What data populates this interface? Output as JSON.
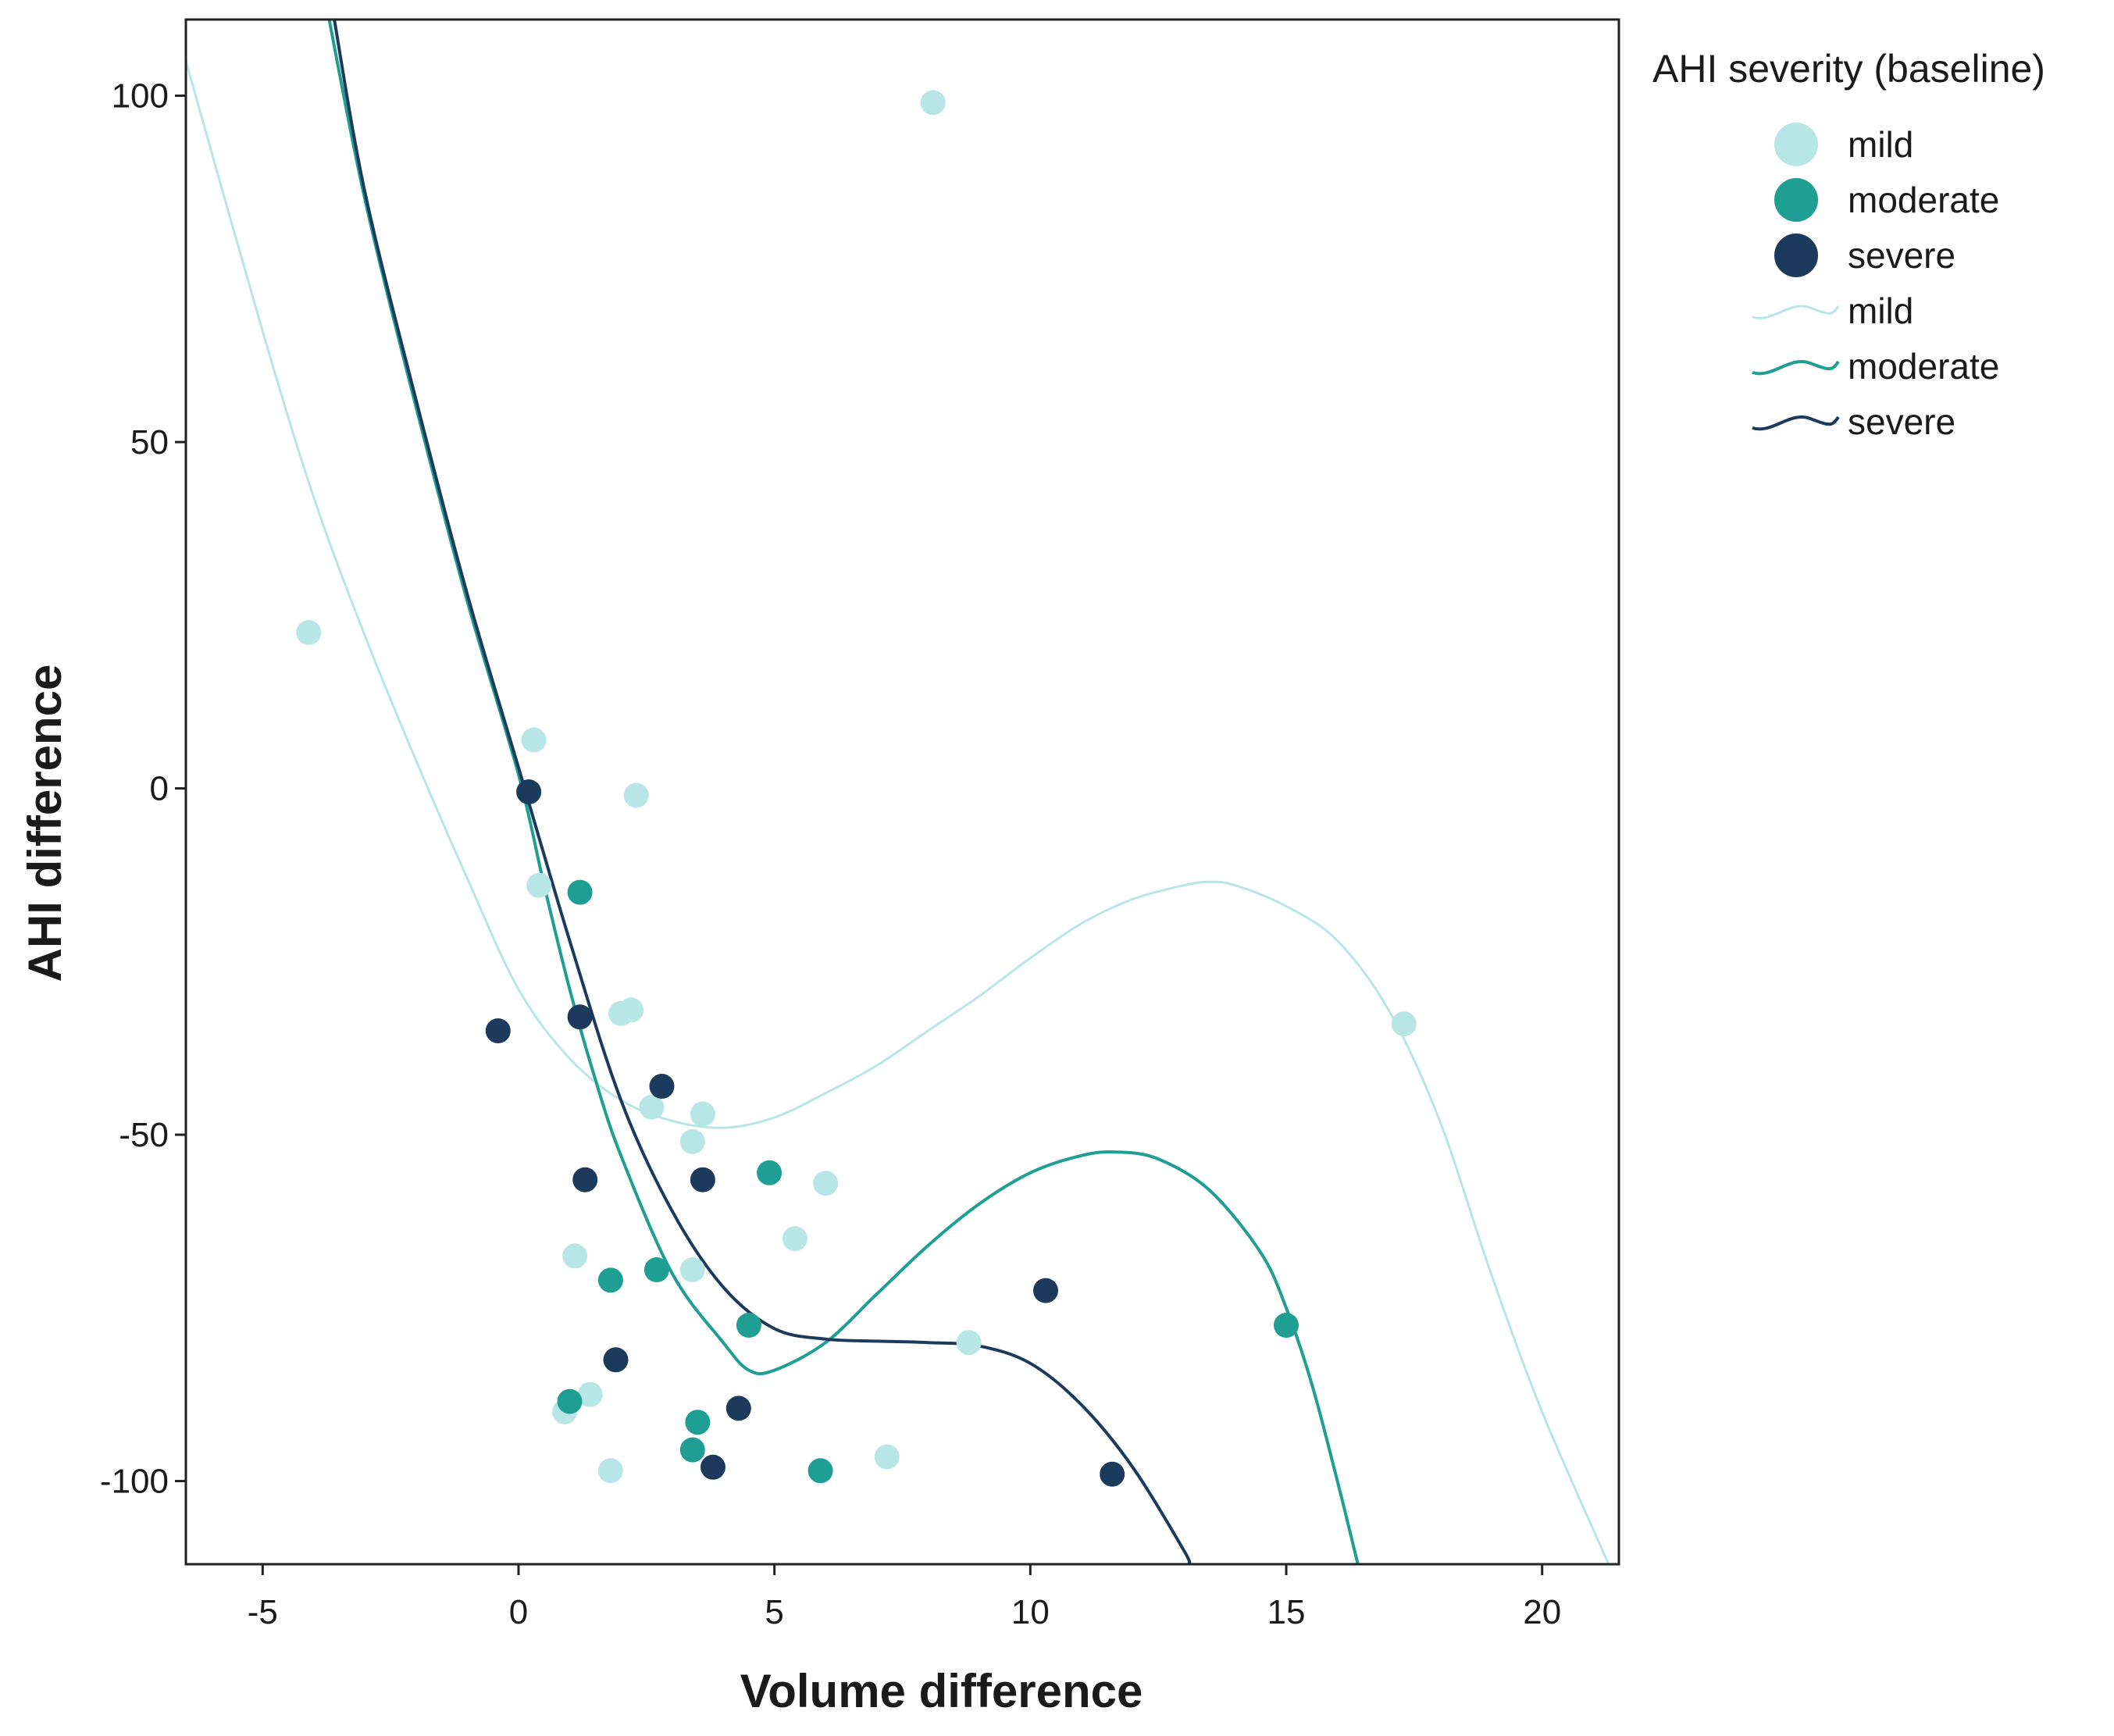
{
  "chart_data": {
    "type": "scatter",
    "title": "",
    "xlabel": "Volume difference",
    "ylabel": "AHI difference",
    "xlim": [
      -6.5,
      21.5
    ],
    "ylim": [
      -112,
      111
    ],
    "xticks": [
      -5,
      0,
      5,
      10,
      15,
      20
    ],
    "yticks": [
      100,
      50,
      0,
      -50,
      -100
    ],
    "xtick_labels": [
      "-5",
      "0",
      "5",
      "10",
      "15",
      "20"
    ],
    "ytick_labels": [
      "100",
      "50",
      "0",
      "-50",
      "-100"
    ],
    "legend": {
      "title": "AHI severity (baseline)",
      "position": "right",
      "marker_entries": [
        "mild",
        "moderate",
        "severe"
      ],
      "line_entries": [
        "mild",
        "moderate",
        "severe"
      ]
    },
    "series": [
      {
        "name": "mild",
        "color": "#b8e6e6",
        "points": [
          [
            -4.1,
            22.5
          ],
          [
            8.1,
            99
          ],
          [
            0.3,
            7
          ],
          [
            2.3,
            -1
          ],
          [
            0.4,
            -14
          ],
          [
            2.2,
            -32
          ],
          [
            2.0,
            -32.5
          ],
          [
            17.3,
            -34
          ],
          [
            3.6,
            -47
          ],
          [
            2.6,
            -46
          ],
          [
            3.4,
            -51
          ],
          [
            6.0,
            -57
          ],
          [
            5.4,
            -65
          ],
          [
            1.1,
            -67.5
          ],
          [
            3.4,
            -69.5
          ],
          [
            8.8,
            -80
          ],
          [
            1.4,
            -87.5
          ],
          [
            0.9,
            -90
          ],
          [
            1.8,
            -98.5
          ],
          [
            7.2,
            -96.5
          ]
        ],
        "curve": [
          [
            -6.5,
            105
          ],
          [
            -5,
            66
          ],
          [
            -4,
            42
          ],
          [
            -3,
            22
          ],
          [
            -2,
            4
          ],
          [
            -1,
            -13
          ],
          [
            0,
            -29
          ],
          [
            1,
            -39
          ],
          [
            2,
            -45
          ],
          [
            3,
            -48
          ],
          [
            4,
            -49
          ],
          [
            5,
            -47.5
          ],
          [
            6,
            -44
          ],
          [
            7,
            -40
          ],
          [
            8,
            -35
          ],
          [
            9,
            -30
          ],
          [
            10,
            -24.5
          ],
          [
            11,
            -19.5
          ],
          [
            12,
            -16
          ],
          [
            13,
            -14
          ],
          [
            13.5,
            -13.5
          ],
          [
            14,
            -14
          ],
          [
            15,
            -17
          ],
          [
            16,
            -22
          ],
          [
            17,
            -32
          ],
          [
            18,
            -48
          ],
          [
            19,
            -70
          ],
          [
            20,
            -90
          ],
          [
            21.3,
            -112
          ]
        ]
      },
      {
        "name": "moderate",
        "color": "#1f9e93",
        "points": [
          [
            1.2,
            -15
          ],
          [
            4.9,
            -55.5
          ],
          [
            1.8,
            -71
          ],
          [
            2.7,
            -69.5
          ],
          [
            4.5,
            -77.5
          ],
          [
            15.0,
            -77.5
          ],
          [
            1.0,
            -88.5
          ],
          [
            3.5,
            -91.5
          ],
          [
            3.4,
            -95.5
          ],
          [
            5.9,
            -98.5
          ]
        ],
        "curve": [
          [
            -3.7,
            111
          ],
          [
            -3,
            85
          ],
          [
            -2,
            55
          ],
          [
            -1,
            27
          ],
          [
            0,
            2
          ],
          [
            0.5,
            -14
          ],
          [
            1,
            -29
          ],
          [
            1.5,
            -42
          ],
          [
            2,
            -53
          ],
          [
            3,
            -70
          ],
          [
            4,
            -80
          ],
          [
            4.5,
            -84
          ],
          [
            5,
            -84
          ],
          [
            6,
            -80
          ],
          [
            7,
            -73
          ],
          [
            8,
            -66
          ],
          [
            9,
            -60
          ],
          [
            10,
            -55.5
          ],
          [
            11,
            -53
          ],
          [
            11.7,
            -52.5
          ],
          [
            12.5,
            -53.5
          ],
          [
            13.5,
            -58
          ],
          [
            14.5,
            -67
          ],
          [
            15,
            -75
          ],
          [
            15.5,
            -86
          ],
          [
            16,
            -100
          ],
          [
            16.4,
            -112
          ]
        ]
      },
      {
        "name": "severe",
        "color": "#1b3a5c",
        "points": [
          [
            0.2,
            -0.5
          ],
          [
            -0.4,
            -35
          ],
          [
            1.2,
            -33
          ],
          [
            2.8,
            -43
          ],
          [
            1.3,
            -56.5
          ],
          [
            3.6,
            -56.5
          ],
          [
            10.3,
            -72.5
          ],
          [
            1.9,
            -82.5
          ],
          [
            4.3,
            -89.5
          ],
          [
            3.8,
            -98
          ],
          [
            11.6,
            -99
          ]
        ],
        "curve": [
          [
            -3.6,
            111
          ],
          [
            -3,
            86
          ],
          [
            -2,
            56
          ],
          [
            -1,
            28
          ],
          [
            0,
            3
          ],
          [
            1,
            -22
          ],
          [
            2,
            -45
          ],
          [
            3,
            -61
          ],
          [
            4,
            -72
          ],
          [
            5,
            -78
          ],
          [
            6,
            -79.5
          ],
          [
            7,
            -79.8
          ],
          [
            8,
            -80
          ],
          [
            9,
            -80.5
          ],
          [
            10,
            -83
          ],
          [
            11,
            -89
          ],
          [
            12,
            -98
          ],
          [
            13,
            -110
          ],
          [
            13.1,
            -112
          ]
        ]
      }
    ]
  }
}
